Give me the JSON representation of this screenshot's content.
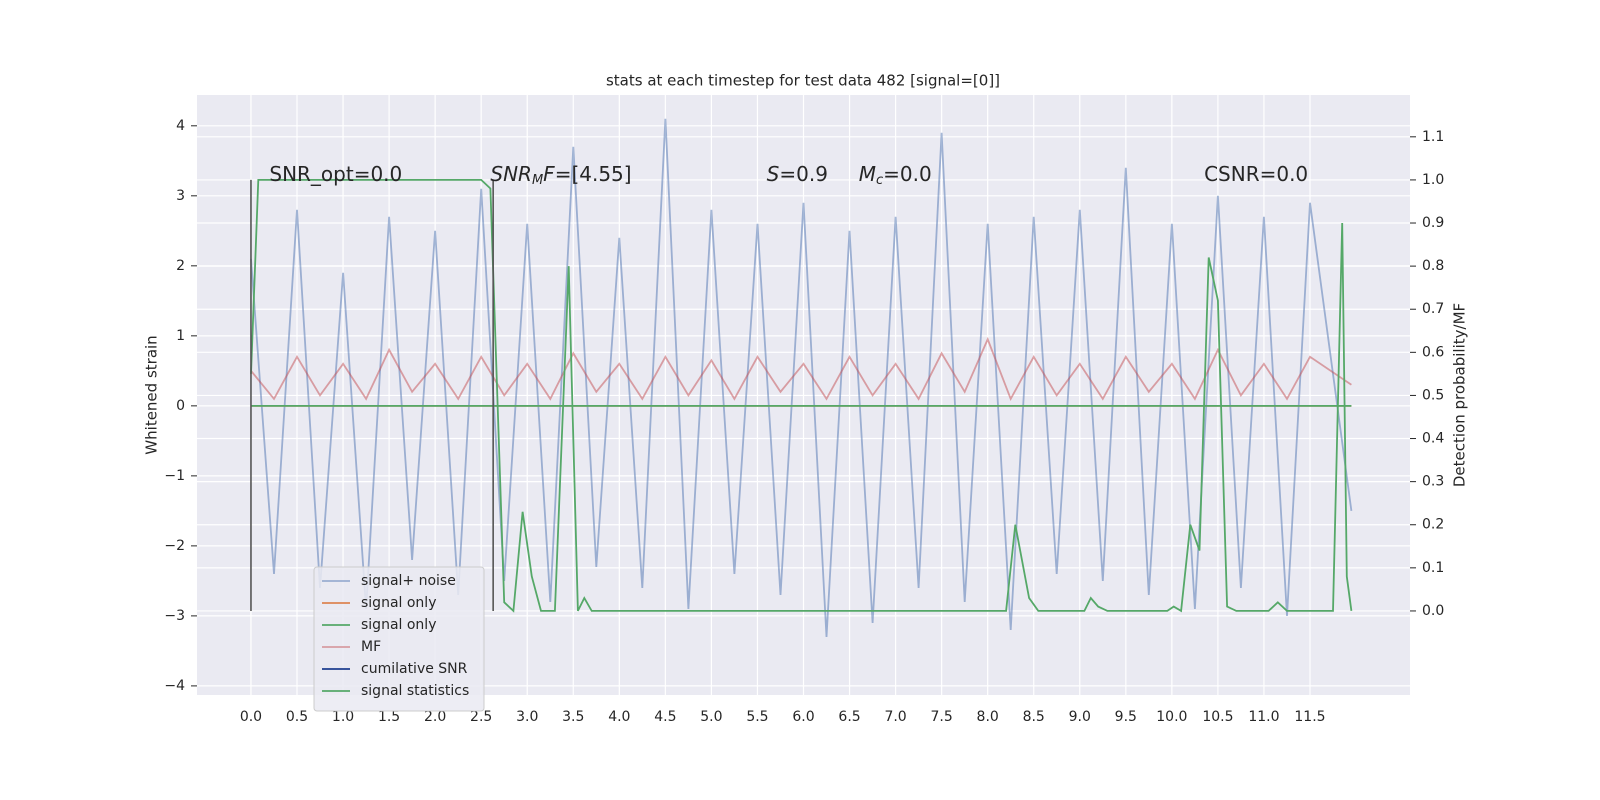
{
  "chart_data": {
    "type": "line",
    "title": "stats at each timestep for test data 482 [signal=[0]]",
    "ylabel": "Whitened strain",
    "y2label": "Detection probability/MF",
    "xlim": [
      -0.586,
      12.586
    ],
    "ylim": [
      -4.13,
      4.44
    ],
    "y2lim": [
      -0.195,
      1.197
    ],
    "grid": true,
    "legend": "lower left",
    "xticks": [
      {
        "value": 0,
        "label": "0.0"
      },
      {
        "value": 0.5,
        "label": "0.5"
      },
      {
        "value": 1,
        "label": "1.0"
      },
      {
        "value": 1.5,
        "label": "1.5"
      },
      {
        "value": 2,
        "label": "2.0"
      },
      {
        "value": 2.5,
        "label": "2.5"
      },
      {
        "value": 3,
        "label": "3.0"
      },
      {
        "value": 3.5,
        "label": "3.5"
      },
      {
        "value": 4,
        "label": "4.0"
      },
      {
        "value": 4.5,
        "label": "4.5"
      },
      {
        "value": 5,
        "label": "5.0"
      },
      {
        "value": 5.5,
        "label": "5.5"
      },
      {
        "value": 6,
        "label": "6.0"
      },
      {
        "value": 6.5,
        "label": "6.5"
      },
      {
        "value": 7,
        "label": "7.0"
      },
      {
        "value": 7.5,
        "label": "7.5"
      },
      {
        "value": 8,
        "label": "8.0"
      },
      {
        "value": 8.5,
        "label": "8.5"
      },
      {
        "value": 9,
        "label": "9.0"
      },
      {
        "value": 9.5,
        "label": "9.5"
      },
      {
        "value": 10,
        "label": "10.0"
      },
      {
        "value": 10.5,
        "label": "10.5"
      },
      {
        "value": 11,
        "label": "11.0"
      },
      {
        "value": 11.5,
        "label": "11.5"
      }
    ],
    "yticks": [
      {
        "value": -4,
        "label": "−4"
      },
      {
        "value": -3,
        "label": "−3"
      },
      {
        "value": -2,
        "label": "−2"
      },
      {
        "value": -1,
        "label": "−1"
      },
      0,
      1,
      2,
      3,
      4
    ],
    "y2ticks": [
      {
        "value": 0,
        "label": "0.0"
      },
      {
        "value": 0.1,
        "label": "0.1"
      },
      {
        "value": 0.2,
        "label": "0.2"
      },
      {
        "value": 0.3,
        "label": "0.3"
      },
      {
        "value": 0.4,
        "label": "0.4"
      },
      {
        "value": 0.5,
        "label": "0.5"
      },
      {
        "value": 0.6,
        "label": "0.6"
      },
      {
        "value": 0.7,
        "label": "0.7"
      },
      {
        "value": 0.8,
        "label": "0.8"
      },
      {
        "value": 0.9,
        "label": "0.9"
      },
      {
        "value": 1,
        "label": "1.0"
      },
      {
        "value": 1.1,
        "label": "1.1"
      }
    ],
    "annotations": [
      {
        "x": 0.2,
        "y": 3.3,
        "parts": [
          {
            "text": "SNR_opt=0.0"
          }
        ]
      },
      {
        "x": 2.6,
        "y": 3.3,
        "parts": [
          {
            "text": "SNR",
            "italic": true
          },
          {
            "text": "M",
            "italic": true,
            "sub": true
          },
          {
            "text": "F",
            "italic": true
          },
          {
            "text": "=[4.55]"
          }
        ]
      },
      {
        "x": 5.6,
        "y": 3.3,
        "parts": [
          {
            "text": "S",
            "italic": true
          },
          {
            "text": "=0.9"
          }
        ]
      },
      {
        "x": 6.6,
        "y": 3.3,
        "parts": [
          {
            "text": "M",
            "italic": true
          },
          {
            "text": "c",
            "italic": true,
            "sub": true
          },
          {
            "text": "=0.0"
          }
        ]
      },
      {
        "x": 10.35,
        "y": 3.3,
        "parts": [
          {
            "text": "CSNR=0.0"
          }
        ]
      }
    ],
    "vlines": [
      {
        "x": 0,
        "ymin": 0,
        "ymax": 1,
        "axis": "y2",
        "color": "#555555"
      },
      {
        "x": 2.63,
        "ymin": 0,
        "ymax": 1,
        "axis": "y2",
        "color": "#555555"
      }
    ],
    "series": [
      {
        "name": "signal+ noise",
        "color": "#4c72b0",
        "opacity": 0.5,
        "x": [
          0,
          0.25,
          0.5,
          0.75,
          1,
          1.25,
          1.5,
          1.75,
          2,
          2.25,
          2.5,
          2.75,
          3,
          3.25,
          3.5,
          3.75,
          4,
          4.25,
          4.5,
          4.75,
          5,
          5.25,
          5.5,
          5.75,
          6,
          6.25,
          6.5,
          6.75,
          7,
          7.25,
          7.5,
          7.75,
          8,
          8.25,
          8.5,
          8.75,
          9,
          9.25,
          9.5,
          9.75,
          10,
          10.25,
          10.5,
          10.75,
          11,
          11.25,
          11.5,
          11.95
        ],
        "values": [
          2.1,
          -2.4,
          2.8,
          -2.6,
          1.9,
          -2.9,
          2.7,
          -2.2,
          2.5,
          -2.7,
          3.1,
          -2.5,
          2.6,
          -2.8,
          3.7,
          -2.3,
          2.4,
          -2.6,
          4.1,
          -2.9,
          2.8,
          -2.4,
          2.6,
          -2.7,
          2.9,
          -3.3,
          2.5,
          -3.1,
          2.7,
          -2.6,
          3.9,
          -2.8,
          2.6,
          -3.2,
          2.7,
          -2.4,
          2.8,
          -2.5,
          3.4,
          -2.7,
          2.6,
          -2.9,
          3.0,
          -2.6,
          2.7,
          -3.0,
          2.9,
          -1.5
        ]
      },
      {
        "name": "signal only",
        "color": "#dd8452",
        "x": [
          0,
          11.95
        ],
        "values": [
          0,
          0
        ]
      },
      {
        "name": "signal only",
        "color": "#55a868",
        "x": [
          0,
          11.95
        ],
        "values": [
          0,
          0
        ]
      },
      {
        "name": "MF",
        "color": "#c44e52",
        "opacity": 0.5,
        "x": [
          0,
          0.25,
          0.5,
          0.75,
          1,
          1.25,
          1.5,
          1.75,
          2,
          2.25,
          2.5,
          2.75,
          3,
          3.25,
          3.5,
          3.75,
          4,
          4.25,
          4.5,
          4.75,
          5,
          5.25,
          5.5,
          5.75,
          6,
          6.25,
          6.5,
          6.75,
          7,
          7.25,
          7.5,
          7.75,
          8,
          8.25,
          8.5,
          8.75,
          9,
          9.25,
          9.5,
          9.75,
          10,
          10.25,
          10.5,
          10.75,
          11,
          11.25,
          11.5,
          11.95
        ],
        "values": [
          0.5,
          0.1,
          0.7,
          0.15,
          0.6,
          0.1,
          0.8,
          0.2,
          0.6,
          0.1,
          0.7,
          0.15,
          0.6,
          0.1,
          0.75,
          0.2,
          0.6,
          0.1,
          0.7,
          0.15,
          0.65,
          0.1,
          0.7,
          0.2,
          0.6,
          0.1,
          0.7,
          0.15,
          0.6,
          0.1,
          0.75,
          0.2,
          0.95,
          0.1,
          0.7,
          0.15,
          0.6,
          0.1,
          0.7,
          0.2,
          0.6,
          0.1,
          0.8,
          0.15,
          0.6,
          0.1,
          0.7,
          0.3
        ]
      },
      {
        "name": "cumilative SNR",
        "color": "#1f3f8f",
        "x": [],
        "values": []
      },
      {
        "name": "signal statistics",
        "color": "#55a868",
        "axis": "y2",
        "x": [
          0,
          0.08,
          0.2,
          2.5,
          2.6,
          2.75,
          2.85,
          2.95,
          3.05,
          3.15,
          3.3,
          3.45,
          3.55,
          3.62,
          3.7,
          3.8,
          8.2,
          8.3,
          8.45,
          8.55,
          9.05,
          9.12,
          9.2,
          9.3,
          9.95,
          10.02,
          10.1,
          10.2,
          10.3,
          10.4,
          10.5,
          10.6,
          10.7,
          11.05,
          11.15,
          11.25,
          11.75,
          11.85,
          11.9,
          11.95
        ],
        "values": [
          0.55,
          1.0,
          1.0,
          1.0,
          0.98,
          0.02,
          0.0,
          0.23,
          0.08,
          0.0,
          0.0,
          0.8,
          0.0,
          0.03,
          0.0,
          0.0,
          0.0,
          0.2,
          0.03,
          0.0,
          0.0,
          0.03,
          0.01,
          0.0,
          0.0,
          0.01,
          0.0,
          0.2,
          0.14,
          0.82,
          0.72,
          0.01,
          0.0,
          0.0,
          0.02,
          0.0,
          0.0,
          0.9,
          0.08,
          0.0
        ]
      }
    ]
  }
}
